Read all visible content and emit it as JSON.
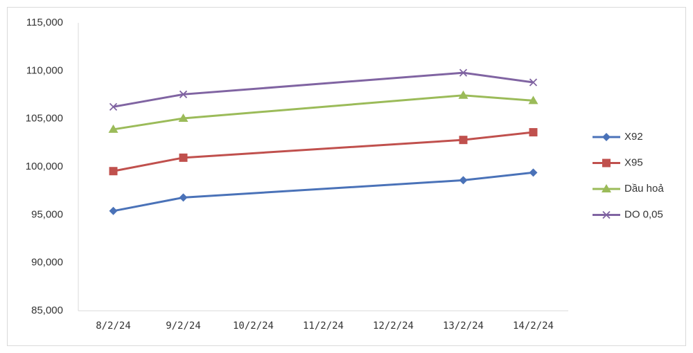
{
  "chart_data": {
    "type": "line",
    "x": [
      "8/2/24",
      "9/2/24",
      "13/2/24",
      "14/2/24"
    ],
    "xticks": [
      "8/2/24",
      "9/2/24",
      "10/2/24",
      "11/2/24",
      "12/2/24",
      "13/2/24",
      "14/2/24"
    ],
    "series": [
      {
        "name": "X92",
        "color": "#4a72b8",
        "marker": "diamond",
        "values": [
          95400,
          96800,
          98600,
          99400
        ]
      },
      {
        "name": "X95",
        "color": "#c0504d",
        "marker": "square",
        "values": [
          99550,
          100950,
          102800,
          103600
        ]
      },
      {
        "name": "Dầu hoả",
        "color": "#9bbb59",
        "marker": "triangle",
        "values": [
          103900,
          105050,
          107450,
          106900
        ]
      },
      {
        "name": "DO 0,05",
        "color": "#8064a2",
        "marker": "x",
        "values": [
          106250,
          107550,
          109800,
          108800
        ]
      }
    ],
    "ylim": [
      85000,
      115000
    ],
    "yticks": [
      {
        "value": 85000,
        "label": "85,000"
      },
      {
        "value": 90000,
        "label": "90,000"
      },
      {
        "value": 95000,
        "label": "95,000"
      },
      {
        "value": 100000,
        "label": "100,000"
      },
      {
        "value": 105000,
        "label": "105,000"
      },
      {
        "value": 110000,
        "label": "110,000"
      },
      {
        "value": 115000,
        "label": "115,000"
      }
    ],
    "legend": "right"
  }
}
